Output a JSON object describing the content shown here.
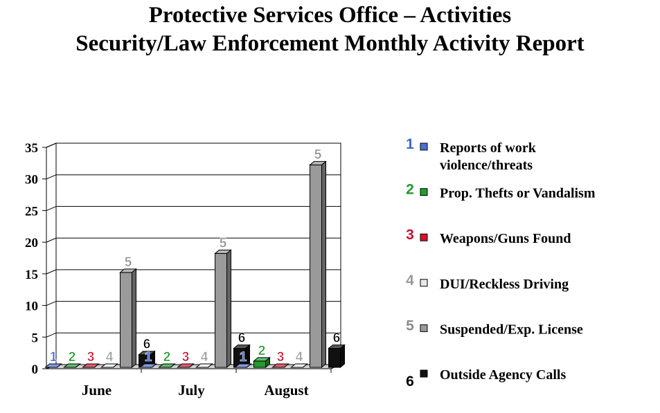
{
  "title_lines": [
    "Protective Services Office – Activities",
    "Security/Law Enforcement Monthly Activity Report"
  ],
  "chart_data": {
    "type": "bar",
    "categories": [
      "June",
      "July",
      "August"
    ],
    "ylim": [
      0,
      35
    ],
    "yticks": [
      0,
      5,
      10,
      15,
      20,
      25,
      30,
      35
    ],
    "grid": true,
    "legend_position": "right",
    "series": [
      {
        "marker": "1",
        "name": "Reports of work violence/threats",
        "name_lines": [
          "Reports of work",
          "violence/threats"
        ],
        "color": "#4b6fd6",
        "marker_color": "#3b63d1",
        "values": [
          0,
          0,
          0
        ]
      },
      {
        "marker": "2",
        "name": "Prop. Thefts or Vandalism",
        "name_lines": [
          "Prop. Thefts or Vandalism"
        ],
        "color": "#1f9e2c",
        "marker_color": "#1e9a2a",
        "values": [
          0,
          0,
          1
        ]
      },
      {
        "marker": "3",
        "name": "Weapons/Guns Found",
        "name_lines": [
          "Weapons/Guns Found"
        ],
        "color": "#d5142b",
        "marker_color": "#c8102e",
        "values": [
          0,
          0,
          0
        ]
      },
      {
        "marker": "4",
        "name": "DUI/Reckless Driving",
        "name_lines": [
          "DUI/Reckless Driving"
        ],
        "color": "#e8e8e8",
        "marker_color": "#9a9a9a",
        "values": [
          0,
          0,
          0
        ]
      },
      {
        "marker": "5",
        "name": "Suspended/Exp. License",
        "name_lines": [
          "Suspended/Exp. License"
        ],
        "color": "#9a9a9a",
        "marker_color": "#8c8c8c",
        "values": [
          15,
          18,
          32
        ]
      },
      {
        "marker": "6",
        "name": "Outside Agency Calls",
        "name_lines": [
          "Outside Agency Calls"
        ],
        "color": "#111111",
        "marker_color": "#000000",
        "values": [
          2,
          3,
          3
        ]
      }
    ]
  }
}
